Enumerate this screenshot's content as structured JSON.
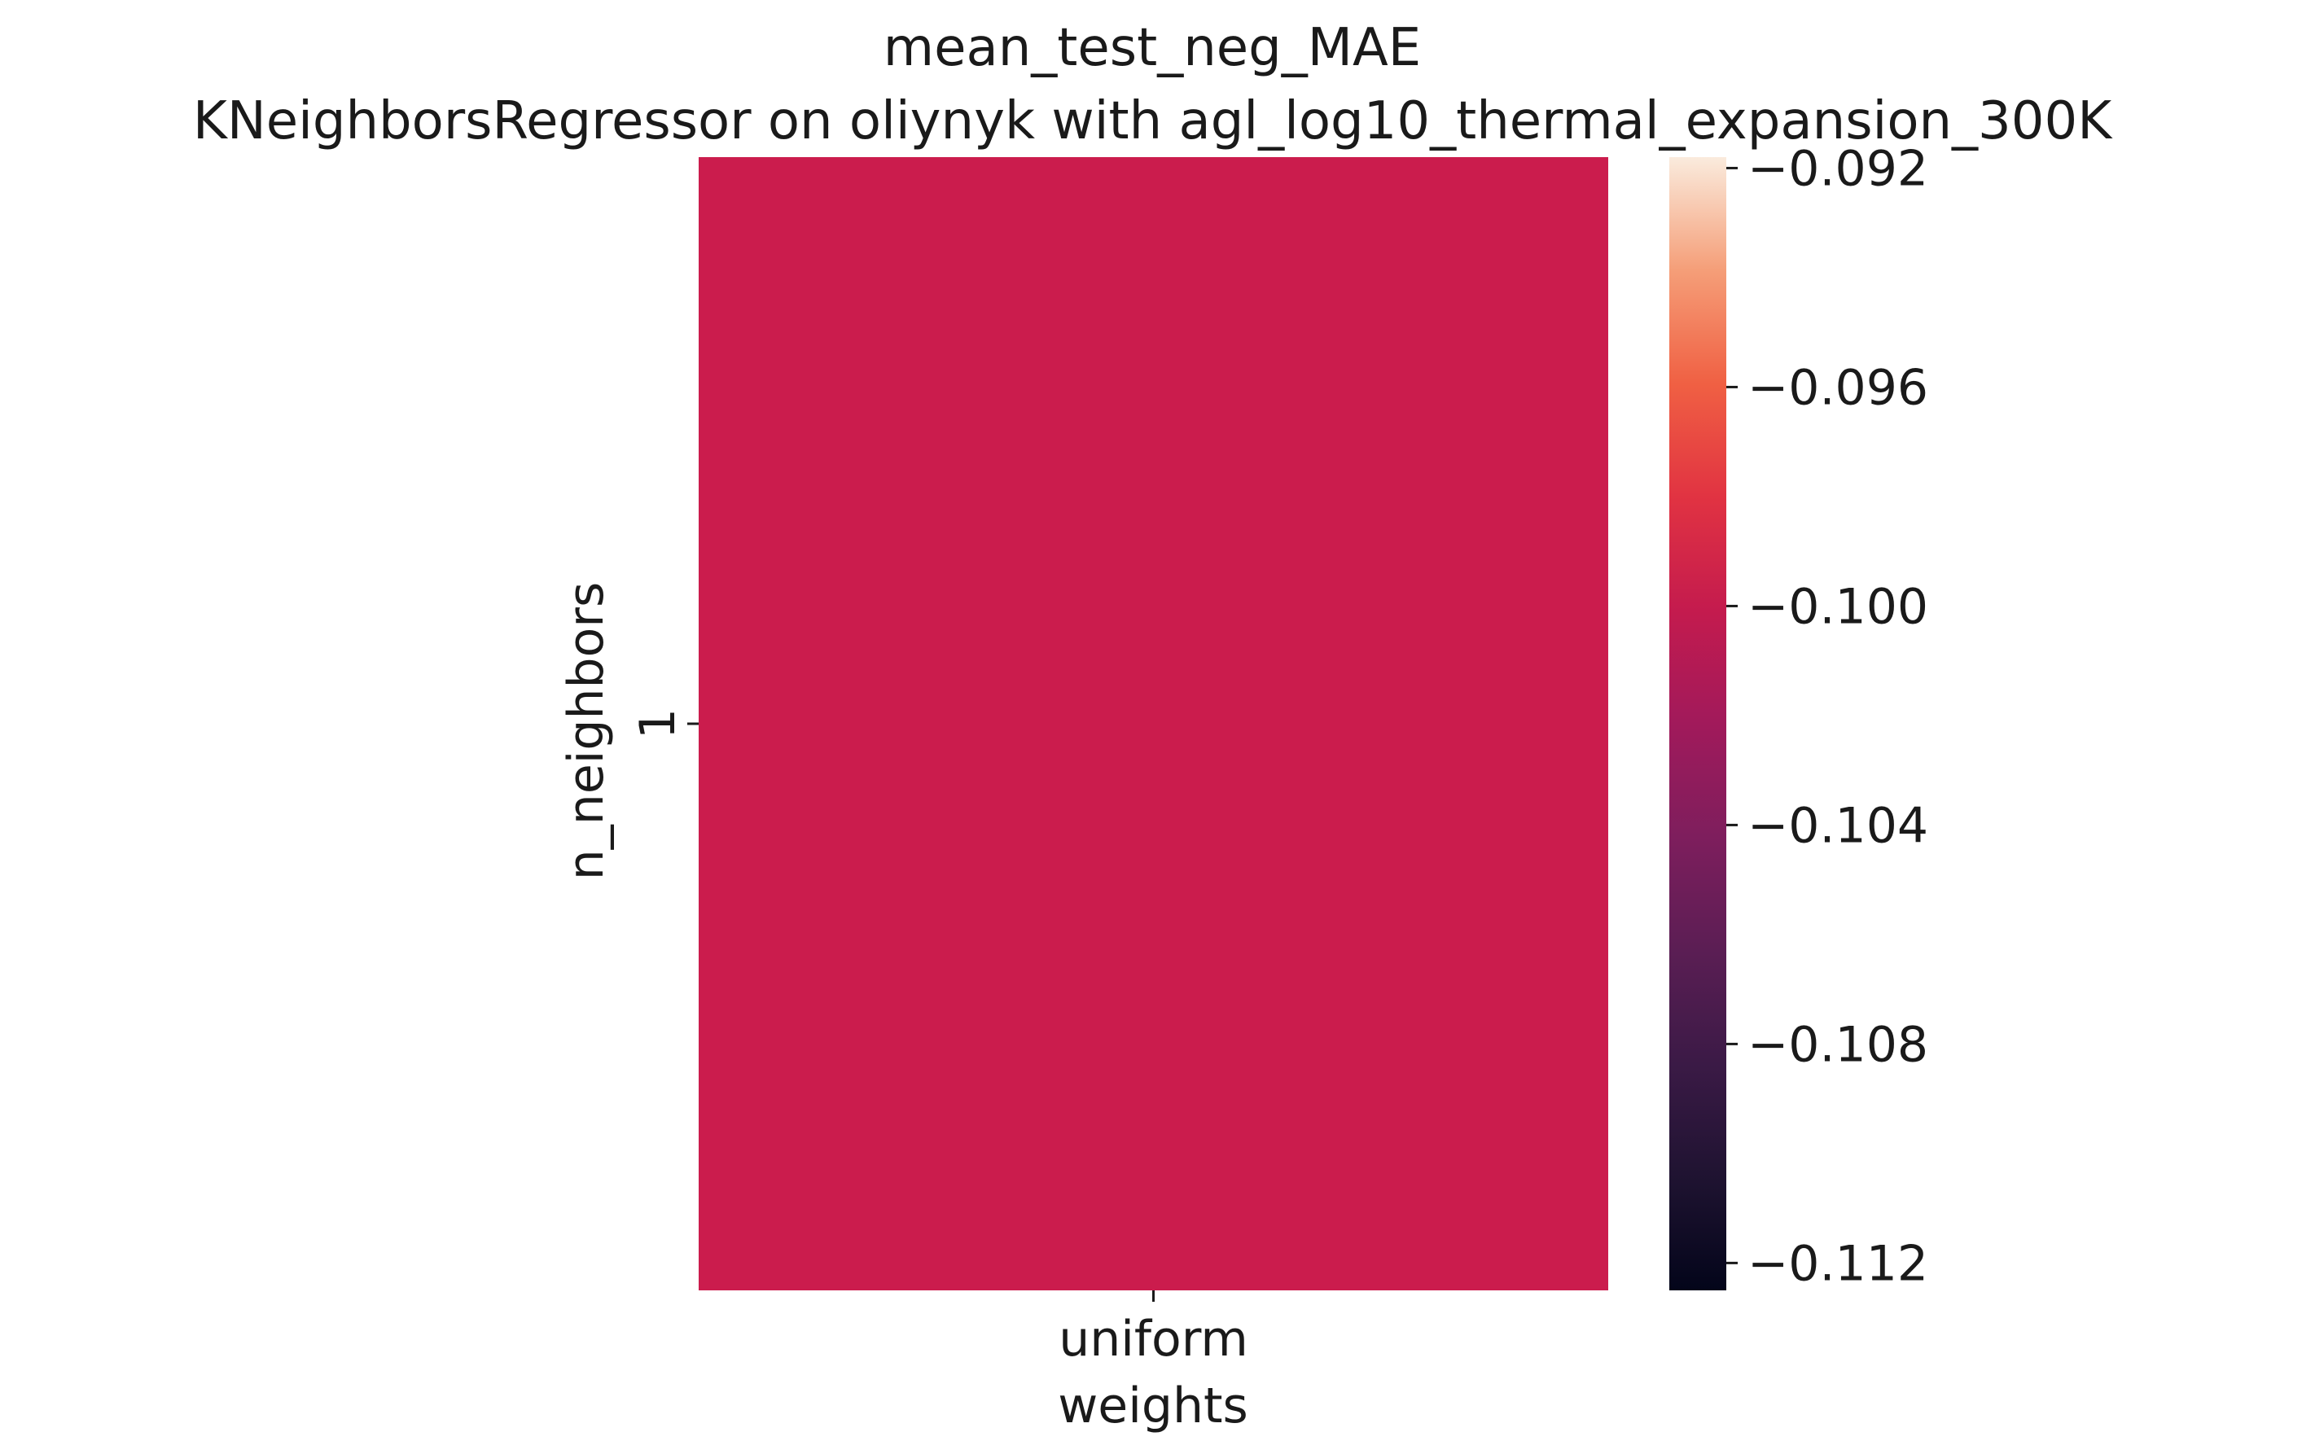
{
  "chart_data": {
    "type": "heatmap",
    "title": "mean_test_neg_MAE",
    "subtitle": "KNeighborsRegressor on oliynyk with agl_log10_thermal_expansion_300K",
    "xlabel": "weights",
    "ylabel": "n_neighbors",
    "x_categories": [
      "uniform"
    ],
    "y_categories": [
      "1"
    ],
    "values": [
      [
        -0.1022
      ]
    ],
    "colormap": "rocket",
    "colorbar": {
      "vmin": -0.1125,
      "vmax": -0.0918,
      "ticks": [
        -0.092,
        -0.096,
        -0.1,
        -0.104,
        -0.108,
        -0.112
      ],
      "tick_labels": [
        "−0.092",
        "−0.096",
        "−0.100",
        "−0.104",
        "−0.108",
        "−0.112"
      ]
    },
    "cell_color": "#cb1c4d",
    "grid": false,
    "legend": "colorbar-right"
  }
}
